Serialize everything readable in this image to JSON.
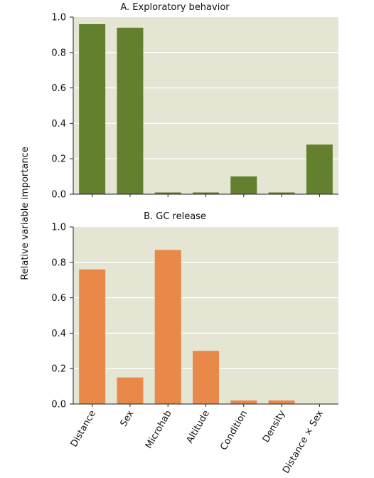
{
  "chart_data": {
    "type": "bar",
    "ylabel": "Relative variable importance",
    "categories": [
      "Distance",
      "Sex",
      "Microhab",
      "Altitude",
      "Condition",
      "Density",
      "Distance × Sex"
    ],
    "ylim": [
      0,
      1.0
    ],
    "yticks": [
      "0.0",
      "0.2",
      "0.4",
      "0.6",
      "0.8",
      "1.0"
    ],
    "grid": true,
    "panels": [
      {
        "title": "A. Exploratory behavior",
        "color": "#62802e",
        "values": [
          0.96,
          0.94,
          0.01,
          0.01,
          0.1,
          0.01,
          0.28
        ]
      },
      {
        "title": "B. GC release",
        "color": "#e8894a",
        "values": [
          0.76,
          0.15,
          0.87,
          0.3,
          0.02,
          0.02,
          0.0
        ]
      }
    ]
  },
  "colors": {
    "plot_background": "#e5e5d3",
    "gridline": "#ffffff",
    "axis": "#222222"
  }
}
